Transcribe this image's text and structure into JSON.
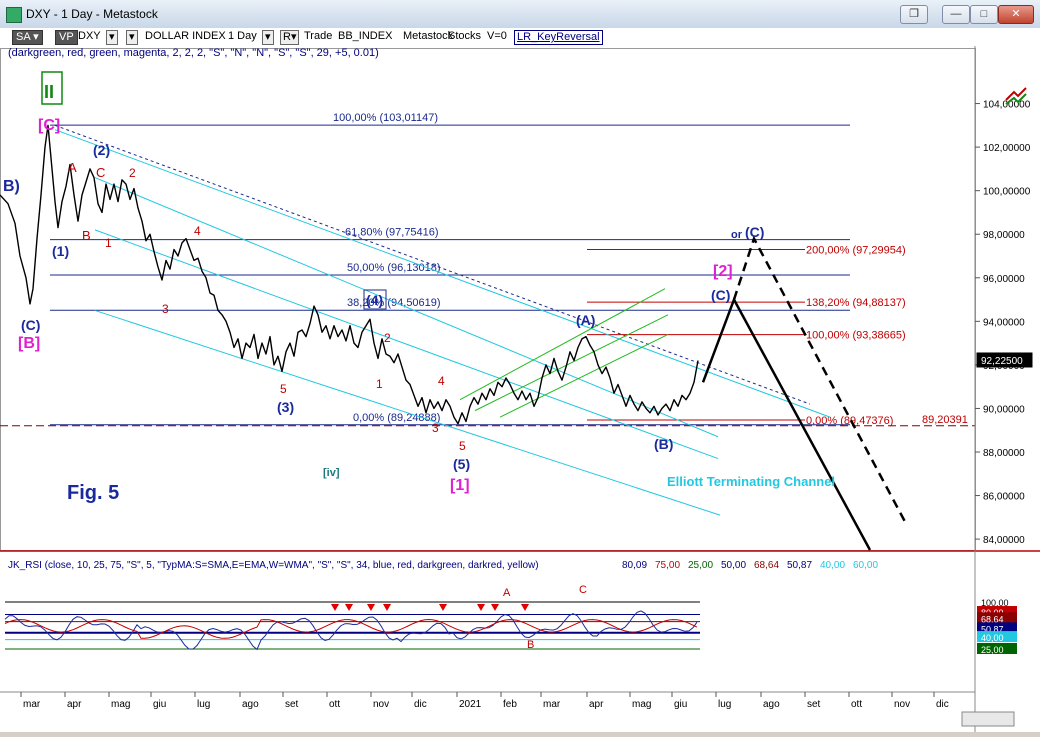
{
  "window": {
    "title": "DXY - 1 Day - Metastock",
    "buttons": {
      "restore": "❐",
      "minimize": "—",
      "maximize": "□",
      "close": "✕"
    }
  },
  "toolbar": {
    "sa": "SA",
    "vp": "VP",
    "symbol": "DXY",
    "index": "DOLLAR INDEX",
    "period": "1 Day",
    "r_label": "R",
    "trade": "Trade",
    "source": "BB_INDEX",
    "metastock": "Metastock",
    "stocks": "Stocks",
    "v": "V=0",
    "indicator": "LR_KeyReversal"
  },
  "main_params": "(darkgreen, red, green, magenta, 2, 2, 2, \"S\", \"N\", \"N\", \"S\", \"S\", 29, +5, 0.01)",
  "colors": {
    "blue_label": "#1a2a9c",
    "red_label": "#c00000",
    "magenta_label": "#e020d0",
    "cyan": "#22c8e0",
    "green": "#22bb22",
    "navy": "#000080"
  },
  "chart_data": {
    "type": "line",
    "title": "Fig. 5",
    "ylim": [
      83.5,
      106
    ],
    "y_ticks": [
      "104,00000",
      "102,00000",
      "100,00000",
      "98,00000",
      "96,00000",
      "94,00000",
      "92,00000",
      "90,00000",
      "88,00000",
      "86,00000",
      "84,00000"
    ],
    "y_tick_values": [
      104,
      102,
      100,
      98,
      96,
      94,
      92,
      90,
      88,
      86,
      84
    ],
    "x_ticks": [
      "mar",
      "apr",
      "mag",
      "giu",
      "lug",
      "ago",
      "set",
      "ott",
      "nov",
      "dic",
      "2021",
      "feb",
      "mar",
      "apr",
      "mag",
      "giu",
      "lug",
      "ago",
      "set",
      "ott",
      "nov",
      "dic"
    ],
    "last_price": "92,22500",
    "extra_price_label": "89,20391",
    "fib_levels_left": [
      {
        "label": "100,00% (103,01147)",
        "value": 103.01
      },
      {
        "label": "61,80% (97,75416)",
        "value": 97.75
      },
      {
        "label": "50,00% (96,13018)",
        "value": 96.13
      },
      {
        "label": "38,20% (94,50619)",
        "value": 94.51
      },
      {
        "label": "0,00% (89,24888)",
        "value": 89.25
      }
    ],
    "fib_levels_right": [
      {
        "label": "200,00% (97,29954)",
        "value": 97.3
      },
      {
        "label": "138,20% (94,88137)",
        "value": 94.88
      },
      {
        "label": "100,00% (93,38665)",
        "value": 93.39
      },
      {
        "label": "0,00% (89,47376)",
        "value": 89.47
      }
    ],
    "wave_labels": [
      {
        "text": "B)",
        "color": "blue"
      },
      {
        "text": "II",
        "color": "green"
      },
      {
        "text": "[C]",
        "color": "magenta"
      },
      {
        "text": "(C)",
        "color": "blue"
      },
      {
        "text": "[B]",
        "color": "magenta"
      },
      {
        "text": "(1)",
        "color": "blue"
      },
      {
        "text": "(2)",
        "color": "blue"
      },
      {
        "text": "A",
        "color": "red"
      },
      {
        "text": "B",
        "color": "red"
      },
      {
        "text": "C",
        "color": "red"
      },
      {
        "text": "1",
        "color": "red"
      },
      {
        "text": "2",
        "color": "red"
      },
      {
        "text": "3",
        "color": "red"
      },
      {
        "text": "4",
        "color": "red"
      },
      {
        "text": "5",
        "color": "red"
      },
      {
        "text": "(3)",
        "color": "blue"
      },
      {
        "text": "(4)",
        "color": "blue"
      },
      {
        "text": "1",
        "color": "red"
      },
      {
        "text": "2",
        "color": "red"
      },
      {
        "text": "3",
        "color": "red"
      },
      {
        "text": "4",
        "color": "red"
      },
      {
        "text": "5",
        "color": "red"
      },
      {
        "text": "(5)",
        "color": "blue"
      },
      {
        "text": "[1]",
        "color": "magenta"
      },
      {
        "text": "[iv]",
        "color": "teal"
      },
      {
        "text": "(A)",
        "color": "blue"
      },
      {
        "text": "(B)",
        "color": "blue"
      },
      {
        "text": "(C)",
        "color": "blue"
      },
      {
        "text": "[2]",
        "color": "magenta"
      },
      {
        "text": "or",
        "color": "blue"
      },
      {
        "text": "(C)",
        "color": "blue"
      }
    ],
    "channel_label": "Elliott Terminating Channel",
    "price_path": [
      [
        0,
        99.8
      ],
      [
        8,
        99.4
      ],
      [
        15,
        98.5
      ],
      [
        20,
        97.0
      ],
      [
        26,
        96.0
      ],
      [
        30,
        94.8
      ],
      [
        33,
        95.5
      ],
      [
        37,
        97.8
      ],
      [
        41,
        99.8
      ],
      [
        45,
        102.0
      ],
      [
        48,
        103.0
      ],
      [
        51,
        101.5
      ],
      [
        55,
        99.5
      ],
      [
        58,
        98.3
      ],
      [
        62,
        99.5
      ],
      [
        66,
        100.2
      ],
      [
        70,
        101.2
      ],
      [
        74,
        99.8
      ],
      [
        78,
        98.6
      ],
      [
        82,
        99.8
      ],
      [
        86,
        100.4
      ],
      [
        90,
        101.0
      ],
      [
        94,
        100.6
      ],
      [
        98,
        99.4
      ],
      [
        102,
        99.0
      ],
      [
        106,
        100.3
      ],
      [
        110,
        99.6
      ],
      [
        114,
        100.3
      ],
      [
        118,
        99.5
      ],
      [
        122,
        100.5
      ],
      [
        126,
        100.3
      ],
      [
        130,
        99.6
      ],
      [
        134,
        100.1
      ],
      [
        138,
        99.2
      ],
      [
        142,
        98.6
      ],
      [
        146,
        97.7
      ],
      [
        150,
        98.0
      ],
      [
        154,
        97.2
      ],
      [
        158,
        96.5
      ],
      [
        162,
        95.9
      ],
      [
        166,
        96.8
      ],
      [
        170,
        96.4
      ],
      [
        174,
        97.3
      ],
      [
        178,
        97.0
      ],
      [
        182,
        97.6
      ],
      [
        186,
        97.8
      ],
      [
        190,
        97.3
      ],
      [
        194,
        96.8
      ],
      [
        198,
        96.9
      ],
      [
        202,
        96.3
      ],
      [
        206,
        96.0
      ],
      [
        210,
        95.3
      ],
      [
        214,
        95.2
      ],
      [
        218,
        94.5
      ],
      [
        222,
        94.3
      ],
      [
        226,
        94.0
      ],
      [
        230,
        93.5
      ],
      [
        234,
        92.8
      ],
      [
        238,
        93.2
      ],
      [
        242,
        92.3
      ],
      [
        246,
        93.0
      ],
      [
        250,
        92.8
      ],
      [
        254,
        93.4
      ],
      [
        258,
        92.3
      ],
      [
        262,
        93.0
      ],
      [
        266,
        92.5
      ],
      [
        270,
        93.3
      ],
      [
        274,
        92.0
      ],
      [
        278,
        92.4
      ],
      [
        282,
        91.7
      ],
      [
        286,
        92.6
      ],
      [
        290,
        93.0
      ],
      [
        294,
        92.4
      ],
      [
        298,
        93.5
      ],
      [
        302,
        93.6
      ],
      [
        306,
        93.3
      ],
      [
        310,
        93.9
      ],
      [
        314,
        94.7
      ],
      [
        318,
        94.3
      ],
      [
        322,
        93.5
      ],
      [
        326,
        93.8
      ],
      [
        330,
        93.2
      ],
      [
        334,
        93.8
      ],
      [
        338,
        93.3
      ],
      [
        342,
        93.6
      ],
      [
        346,
        93.1
      ],
      [
        350,
        93.8
      ],
      [
        354,
        93.0
      ],
      [
        358,
        92.8
      ],
      [
        362,
        93.5
      ],
      [
        366,
        93.8
      ],
      [
        370,
        94.1
      ],
      [
        374,
        93.0
      ],
      [
        378,
        92.3
      ],
      [
        382,
        93.2
      ],
      [
        386,
        92.5
      ],
      [
        390,
        92.4
      ],
      [
        394,
        92.1
      ],
      [
        398,
        92.5
      ],
      [
        402,
        91.9
      ],
      [
        406,
        91.3
      ],
      [
        410,
        91.1
      ],
      [
        414,
        90.6
      ],
      [
        418,
        90.1
      ],
      [
        422,
        90.5
      ],
      [
        426,
        89.8
      ],
      [
        430,
        90.4
      ],
      [
        434,
        90.0
      ],
      [
        438,
        90.3
      ],
      [
        442,
        89.9
      ],
      [
        446,
        90.4
      ],
      [
        450,
        90.1
      ],
      [
        454,
        89.6
      ],
      [
        458,
        89.3
      ],
      [
        462,
        89.8
      ],
      [
        466,
        89.4
      ],
      [
        470,
        90.1
      ],
      [
        474,
        90.5
      ],
      [
        478,
        90.2
      ],
      [
        482,
        90.7
      ],
      [
        486,
        90.4
      ],
      [
        490,
        90.9
      ],
      [
        494,
        90.6
      ],
      [
        498,
        91.2
      ],
      [
        502,
        91.0
      ],
      [
        506,
        91.4
      ],
      [
        510,
        91.1
      ],
      [
        514,
        90.7
      ],
      [
        518,
        90.4
      ],
      [
        522,
        90.8
      ],
      [
        526,
        90.4
      ],
      [
        530,
        90.7
      ],
      [
        534,
        90.1
      ],
      [
        538,
        90.5
      ],
      [
        542,
        91.4
      ],
      [
        546,
        92.0
      ],
      [
        550,
        91.6
      ],
      [
        554,
        92.3
      ],
      [
        558,
        91.7
      ],
      [
        562,
        91.3
      ],
      [
        566,
        91.9
      ],
      [
        570,
        92.6
      ],
      [
        574,
        92.2
      ],
      [
        578,
        92.8
      ],
      [
        582,
        93.2
      ],
      [
        586,
        93.3
      ],
      [
        590,
        92.9
      ],
      [
        594,
        92.6
      ],
      [
        598,
        92.0
      ],
      [
        602,
        91.6
      ],
      [
        606,
        91.9
      ],
      [
        610,
        91.4
      ],
      [
        614,
        90.7
      ],
      [
        618,
        91.1
      ],
      [
        622,
        90.6
      ],
      [
        626,
        90.1
      ],
      [
        630,
        90.6
      ],
      [
        634,
        90.2
      ],
      [
        638,
        89.9
      ],
      [
        642,
        90.3
      ],
      [
        646,
        90.0
      ],
      [
        650,
        89.8
      ],
      [
        654,
        90.1
      ],
      [
        658,
        89.7
      ],
      [
        662,
        90.0
      ],
      [
        666,
        90.2
      ],
      [
        670,
        89.9
      ],
      [
        674,
        90.4
      ],
      [
        678,
        90.1
      ],
      [
        682,
        90.6
      ],
      [
        686,
        90.4
      ],
      [
        690,
        90.7
      ],
      [
        694,
        91.2
      ],
      [
        698,
        92.2
      ]
    ],
    "projection_solid": [
      [
        703,
        91.2
      ],
      [
        734,
        95.0
      ],
      [
        870,
        83.5
      ]
    ],
    "projection_dashed": [
      [
        734,
        95.0
      ],
      [
        754,
        97.8
      ],
      [
        905,
        84.8
      ]
    ]
  },
  "rsi_panel": {
    "params": "JK_RSI   (close,  10,  25,  75,  \"S\",  5,  \"TypMA:S=SMA,E=EMA,W=WMA\",  \"S\",  \"S\",  34,  blue,  red,  darkgreen,  darkred,  yellow)",
    "values": [
      {
        "text": "80,09",
        "color": "#000080"
      },
      {
        "text": "75,00",
        "color": "#c00000"
      },
      {
        "text": "25,00",
        "color": "#006400"
      },
      {
        "text": "50,00",
        "color": "#000080"
      },
      {
        "text": "68,64",
        "color": "#8b0000"
      },
      {
        "text": "50,87",
        "color": "#000080"
      },
      {
        "text": "40,00",
        "color": "#22c8e0"
      },
      {
        "text": "60,00",
        "color": "#22c8e0"
      }
    ],
    "axis_labels": [
      "100,00",
      "80,09",
      "68,64",
      "50,87",
      "40,00",
      "25,00"
    ],
    "labels": [
      "A",
      "C",
      "B"
    ]
  }
}
